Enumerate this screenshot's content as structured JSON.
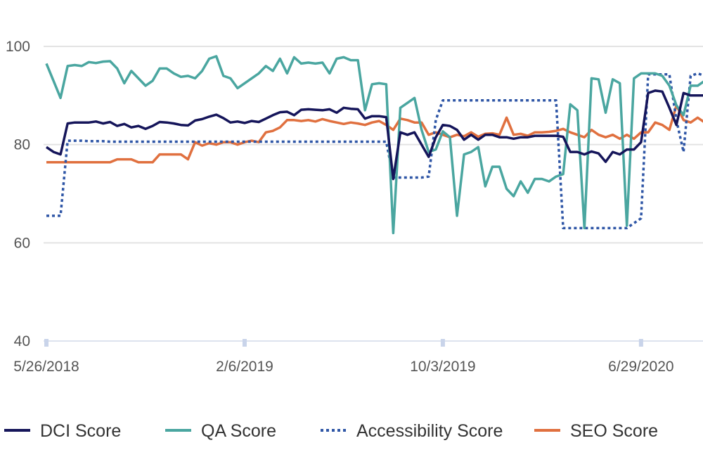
{
  "chart_data": {
    "type": "line",
    "title": "",
    "xlabel": "",
    "ylabel": "",
    "ylim": [
      40,
      100
    ],
    "y_ticks": [
      40,
      60,
      80,
      100
    ],
    "grid": true,
    "legend_placement": "bottom",
    "x_axis": "category (sampled observations)",
    "x_tick_labels": [
      {
        "label": "5/26/2018",
        "index": 0
      },
      {
        "label": "2/6/2019",
        "index": 28
      },
      {
        "label": "10/3/2019",
        "index": 56
      },
      {
        "label": "6/29/2020",
        "index": 84
      }
    ],
    "series": [
      {
        "name": "DCI Score",
        "color": "#15155a",
        "style": "solid",
        "values": [
          79.5,
          78.5,
          78,
          84.3,
          84.5,
          84.5,
          84.5,
          84.7,
          84.3,
          84.6,
          83.8,
          84.2,
          83.5,
          83.8,
          83.2,
          83.8,
          84.6,
          84.5,
          84.3,
          84.0,
          83.9,
          84.9,
          85.2,
          85.7,
          86.1,
          85.4,
          84.5,
          84.7,
          84.4,
          84.8,
          84.6,
          85.3,
          86.0,
          86.6,
          86.7,
          86.0,
          87.1,
          87.2,
          87.1,
          87.0,
          87.2,
          86.5,
          87.5,
          87.3,
          87.2,
          85.3,
          85.8,
          85.8,
          85.6,
          73,
          82.5,
          82,
          82.5,
          80,
          77.5,
          81.5,
          84,
          83.8,
          83,
          81,
          82,
          81,
          82,
          82,
          81.5,
          81.5,
          81.2,
          81.5,
          81.5,
          81.8,
          81.8,
          81.8,
          81.8,
          81.6,
          78.5,
          78.5,
          78,
          78.6,
          78.2,
          76.5,
          78.5,
          78,
          79,
          79,
          80.5,
          90.5,
          91,
          90.8,
          87.5,
          84,
          90.5,
          90,
          90,
          90
        ]
      },
      {
        "name": "QA Score",
        "color": "#4aa6a0",
        "style": "solid",
        "values": [
          96.5,
          93,
          89.5,
          96,
          96.2,
          96,
          96.8,
          96.6,
          96.9,
          97,
          95.5,
          92.5,
          95,
          93.5,
          92,
          93,
          95.5,
          95.5,
          94.5,
          93.8,
          94,
          93.5,
          95,
          97.5,
          98,
          94,
          93.5,
          91.5,
          92.5,
          93.5,
          94.5,
          96,
          95,
          97.5,
          94.5,
          97.8,
          96.5,
          96.7,
          96.5,
          96.7,
          94.5,
          97.5,
          97.8,
          97.2,
          97.2,
          87,
          92.3,
          92.5,
          92.3,
          62,
          87.5,
          88.5,
          89.5,
          83,
          78.5,
          79,
          82.7,
          81.5,
          65.5,
          78,
          78.5,
          79.5,
          71.5,
          75.5,
          75.5,
          71,
          69.5,
          72.5,
          70.2,
          73,
          73,
          72.5,
          73.5,
          74,
          88.2,
          87,
          63,
          93.5,
          93.3,
          86.5,
          93.3,
          92.5,
          63.5,
          93.5,
          94.5,
          94.5,
          94.5,
          94,
          92,
          88,
          86,
          92,
          92,
          93
        ]
      },
      {
        "name": "Accessibility Score",
        "color": "#2f56a6",
        "style": "dotted",
        "values": [
          65.5,
          65.5,
          65.5,
          80.8,
          80.8,
          80.8,
          80.7,
          80.7,
          80.7,
          80.6,
          80.6,
          80.6,
          80.6,
          80.6,
          80.6,
          80.6,
          80.6,
          80.6,
          80.6,
          80.6,
          80.6,
          80.6,
          80.6,
          80.6,
          80.6,
          80.6,
          80.6,
          80.6,
          80.6,
          80.6,
          80.6,
          80.6,
          80.6,
          80.6,
          80.6,
          80.6,
          80.6,
          80.6,
          80.6,
          80.6,
          80.6,
          80.6,
          80.6,
          80.6,
          80.6,
          80.6,
          80.6,
          80.6,
          80.6,
          73.3,
          73.3,
          73.3,
          73.3,
          73.3,
          73.5,
          85,
          89,
          89,
          89,
          89,
          89,
          89,
          89,
          89,
          89,
          89,
          89,
          89,
          89,
          89,
          89,
          89,
          89,
          63,
          63,
          63,
          63,
          63,
          63,
          63,
          63,
          63,
          63,
          64,
          65,
          94.3,
          94.3,
          94.3,
          94.3,
          85,
          78.5,
          94,
          94.5,
          94
        ]
      },
      {
        "name": "SEO Score",
        "color": "#e0703f",
        "style": "solid",
        "values": [
          76.4,
          76.4,
          76.4,
          76.4,
          76.4,
          76.4,
          76.4,
          76.4,
          76.4,
          76.4,
          77,
          77,
          77,
          76.4,
          76.4,
          76.4,
          78,
          78,
          78,
          78,
          77,
          80.5,
          79.8,
          80.3,
          80,
          80.5,
          80.5,
          80,
          80.5,
          80.8,
          80.5,
          82.5,
          82.8,
          83.5,
          85,
          85,
          84.8,
          85,
          84.7,
          85.2,
          84.8,
          84.5,
          84.2,
          84.5,
          84.3,
          84,
          84.5,
          84.8,
          84,
          83,
          85.3,
          85,
          84.5,
          84.5,
          82,
          82.5,
          82,
          81.5,
          82,
          81.7,
          82.5,
          81.6,
          82.2,
          82.3,
          82,
          85.5,
          82,
          82.2,
          81.8,
          82.5,
          82.5,
          82.6,
          82.8,
          83.2,
          82.5,
          82,
          81.5,
          83,
          82,
          81.5,
          82,
          81.2,
          82,
          81.2,
          82.5,
          82.5,
          84.5,
          84,
          83,
          88,
          85,
          84.5,
          85.5,
          84.5
        ]
      }
    ]
  }
}
